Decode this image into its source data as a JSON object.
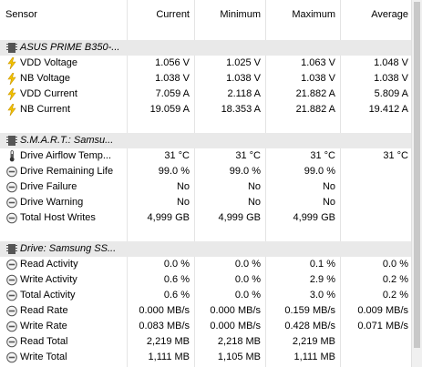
{
  "columns": [
    "Sensor",
    "Current",
    "Minimum",
    "Maximum",
    "Average"
  ],
  "groups": [
    {
      "title": "ASUS PRIME B350-...",
      "icon": "chip-icon",
      "rows": [
        {
          "icon": "bolt-icon",
          "cells": [
            "VDD Voltage",
            "1.056 V",
            "1.025 V",
            "1.063 V",
            "1.048 V"
          ]
        },
        {
          "icon": "bolt-icon",
          "cells": [
            "NB Voltage",
            "1.038 V",
            "1.038 V",
            "1.038 V",
            "1.038 V"
          ]
        },
        {
          "icon": "bolt-icon",
          "cells": [
            "VDD Current",
            "7.059 A",
            "2.118 A",
            "21.882 A",
            "5.809 A"
          ]
        },
        {
          "icon": "bolt-icon",
          "cells": [
            "NB Current",
            "19.059 A",
            "18.353 A",
            "21.882 A",
            "19.412 A"
          ]
        }
      ]
    },
    {
      "title": "S.M.A.R.T.: Samsu...",
      "icon": "chip-icon",
      "rows": [
        {
          "icon": "thermometer-icon",
          "cells": [
            "Drive Airflow Temp...",
            "31 °C",
            "31 °C",
            "31 °C",
            "31 °C"
          ]
        },
        {
          "icon": "gauge-icon",
          "cells": [
            "Drive Remaining Life",
            "99.0 %",
            "99.0 %",
            "99.0 %",
            ""
          ]
        },
        {
          "icon": "gauge-icon",
          "cells": [
            "Drive Failure",
            "No",
            "No",
            "No",
            ""
          ]
        },
        {
          "icon": "gauge-icon",
          "cells": [
            "Drive Warning",
            "No",
            "No",
            "No",
            ""
          ]
        },
        {
          "icon": "gauge-icon",
          "cells": [
            "Total Host Writes",
            "4,999 GB",
            "4,999 GB",
            "4,999 GB",
            ""
          ]
        }
      ]
    },
    {
      "title": "Drive: Samsung SS...",
      "icon": "chip-icon",
      "rows": [
        {
          "icon": "gauge-icon",
          "cells": [
            "Read Activity",
            "0.0 %",
            "0.0 %",
            "0.1 %",
            "0.0 %"
          ]
        },
        {
          "icon": "gauge-icon",
          "cells": [
            "Write Activity",
            "0.6 %",
            "0.0 %",
            "2.9 %",
            "0.2 %"
          ]
        },
        {
          "icon": "gauge-icon",
          "cells": [
            "Total Activity",
            "0.6 %",
            "0.0 %",
            "3.0 %",
            "0.2 %"
          ]
        },
        {
          "icon": "gauge-icon",
          "cells": [
            "Read Rate",
            "0.000 MB/s",
            "0.000 MB/s",
            "0.159 MB/s",
            "0.009 MB/s"
          ]
        },
        {
          "icon": "gauge-icon",
          "cells": [
            "Write Rate",
            "0.083 MB/s",
            "0.000 MB/s",
            "0.428 MB/s",
            "0.071 MB/s"
          ]
        },
        {
          "icon": "gauge-icon",
          "cells": [
            "Read Total",
            "2,219 MB",
            "2,218 MB",
            "2,219 MB",
            ""
          ]
        },
        {
          "icon": "gauge-icon",
          "cells": [
            "Write Total",
            "1,111 MB",
            "1,105 MB",
            "1,111 MB",
            ""
          ]
        }
      ]
    }
  ],
  "colors": {
    "bolt": "#f2c200",
    "boltDark": "#c99600",
    "group": "#e9e9e9",
    "grid": "#e4e4e4"
  }
}
